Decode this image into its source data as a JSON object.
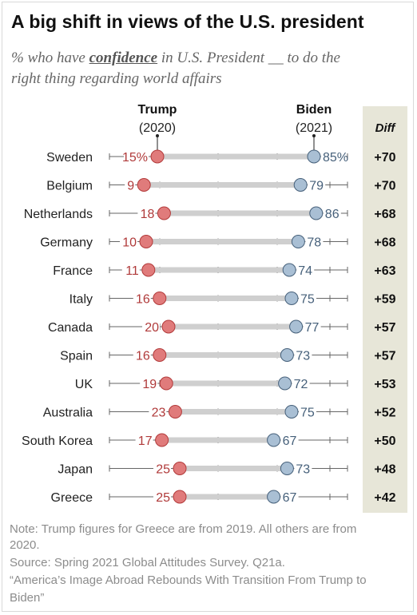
{
  "title": "A big shift in views of the U.S. president",
  "subtitle": {
    "prefix": "% who have ",
    "emphasis": "confidence",
    "suffix": " in U.S. President __ to do the",
    "line2": "right thing regarding world affairs"
  },
  "chart_data": {
    "type": "dot",
    "series": [
      {
        "name": "Trump",
        "sub": "(2020)",
        "color": "#e07b7b",
        "stroke": "#b23a3a"
      },
      {
        "name": "Biden",
        "sub": "(2021)",
        "color": "#a9bfd4",
        "stroke": "#46607a"
      }
    ],
    "diff_header": "Diff",
    "categories": [
      "Sweden",
      "Belgium",
      "Netherlands",
      "Germany",
      "France",
      "Italy",
      "Canada",
      "Spain",
      "UK",
      "Australia",
      "South Korea",
      "Japan",
      "Greece"
    ],
    "trump": [
      15,
      9,
      18,
      10,
      11,
      16,
      20,
      16,
      19,
      23,
      17,
      25,
      25
    ],
    "biden": [
      85,
      79,
      86,
      78,
      74,
      75,
      77,
      73,
      72,
      75,
      67,
      73,
      67
    ],
    "trump_labels": [
      "15%",
      "9",
      "18",
      "10",
      "11",
      "16",
      "20",
      "16",
      "19",
      "23",
      "17",
      "25",
      "25"
    ],
    "biden_labels": [
      "85%",
      "79",
      "86",
      "78",
      "74",
      "75",
      "77",
      "73",
      "72",
      "75",
      "67",
      "73",
      "67"
    ],
    "diff": [
      "+70",
      "+70",
      "+68",
      "+68",
      "+63",
      "+59",
      "+57",
      "+57",
      "+53",
      "+52",
      "+50",
      "+48",
      "+42"
    ],
    "xlim": [
      0,
      100
    ],
    "colors": {
      "trump_text": "#b03a3a",
      "biden_text": "#46607a",
      "diff_bg": "#e7e6d8",
      "line": "#cfcfcf"
    }
  },
  "notes": {
    "line1": "Note: Trump figures for Greece are from 2019. All others are from",
    "line2": "2020.",
    "line3": "Source: Spring 2021 Global Attitudes Survey. Q21a.",
    "line4": "“America’s Image Abroad Rebounds With Transition From Trump to",
    "line5": "Biden”"
  }
}
